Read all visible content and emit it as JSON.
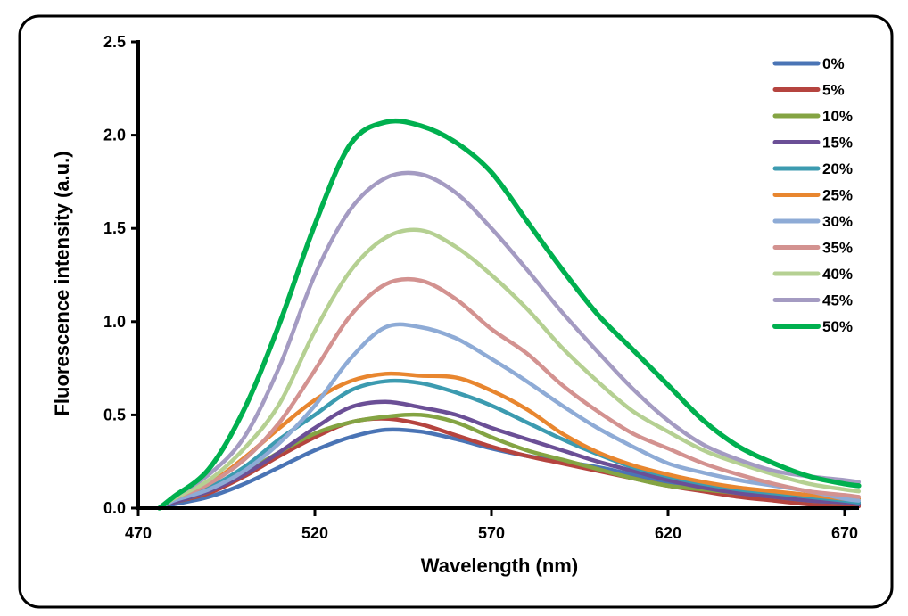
{
  "chart_data": {
    "type": "line",
    "title": "",
    "xlabel": "Wavelength (nm)",
    "ylabel": "Fluorescence intensity (a.u.)",
    "xlim": [
      470,
      675
    ],
    "ylim": [
      0,
      2.5
    ],
    "xticks": [
      "470",
      "520",
      "570",
      "620",
      "670"
    ],
    "yticks": [
      "0.0",
      "0.5",
      "1.0",
      "1.5",
      "2.0",
      "2.5"
    ],
    "grid": false,
    "legend_position": "top-right",
    "x": [
      476,
      480,
      490,
      500,
      510,
      520,
      530,
      540,
      550,
      560,
      570,
      580,
      590,
      600,
      610,
      620,
      630,
      640,
      650,
      660,
      670,
      674
    ],
    "series": [
      {
        "name": "0%",
        "color": "#4a74b5",
        "values": [
          0,
          0.02,
          0.06,
          0.13,
          0.22,
          0.31,
          0.38,
          0.42,
          0.41,
          0.37,
          0.32,
          0.28,
          0.25,
          0.22,
          0.18,
          0.14,
          0.1,
          0.07,
          0.05,
          0.02,
          0.0,
          0.01
        ]
      },
      {
        "name": "5%",
        "color": "#b5443f",
        "values": [
          0,
          0.03,
          0.08,
          0.17,
          0.28,
          0.38,
          0.46,
          0.48,
          0.45,
          0.39,
          0.33,
          0.28,
          0.24,
          0.2,
          0.16,
          0.12,
          0.09,
          0.06,
          0.04,
          0.02,
          0.01,
          0.01
        ]
      },
      {
        "name": "10%",
        "color": "#84a443",
        "values": [
          0,
          0.03,
          0.09,
          0.19,
          0.3,
          0.4,
          0.46,
          0.49,
          0.5,
          0.46,
          0.38,
          0.31,
          0.26,
          0.21,
          0.16,
          0.12,
          0.1,
          0.08,
          0.06,
          0.04,
          0.03,
          0.02
        ]
      },
      {
        "name": "15%",
        "color": "#6b4f96",
        "values": [
          0,
          0.03,
          0.09,
          0.18,
          0.3,
          0.43,
          0.54,
          0.57,
          0.54,
          0.5,
          0.43,
          0.37,
          0.31,
          0.25,
          0.2,
          0.15,
          0.11,
          0.08,
          0.06,
          0.04,
          0.03,
          0.02
        ]
      },
      {
        "name": "20%",
        "color": "#3c9bb0",
        "values": [
          0,
          0.04,
          0.11,
          0.22,
          0.37,
          0.5,
          0.63,
          0.68,
          0.67,
          0.62,
          0.55,
          0.46,
          0.37,
          0.29,
          0.22,
          0.17,
          0.13,
          0.1,
          0.08,
          0.06,
          0.04,
          0.03
        ]
      },
      {
        "name": "25%",
        "color": "#e8862f",
        "values": [
          0,
          0.05,
          0.13,
          0.27,
          0.43,
          0.58,
          0.68,
          0.72,
          0.71,
          0.7,
          0.63,
          0.53,
          0.4,
          0.3,
          0.23,
          0.18,
          0.14,
          0.11,
          0.09,
          0.07,
          0.05,
          0.05
        ]
      },
      {
        "name": "30%",
        "color": "#8eabd6",
        "values": [
          0,
          0.04,
          0.1,
          0.2,
          0.35,
          0.55,
          0.8,
          0.97,
          0.97,
          0.91,
          0.8,
          0.68,
          0.55,
          0.43,
          0.33,
          0.24,
          0.19,
          0.15,
          0.12,
          0.09,
          0.05,
          0.04
        ]
      },
      {
        "name": "35%",
        "color": "#d39290",
        "values": [
          0,
          0.05,
          0.13,
          0.26,
          0.46,
          0.74,
          1.03,
          1.2,
          1.22,
          1.12,
          0.96,
          0.83,
          0.66,
          0.52,
          0.4,
          0.32,
          0.24,
          0.18,
          0.13,
          0.09,
          0.07,
          0.06
        ]
      },
      {
        "name": "40%",
        "color": "#b5d092",
        "values": [
          0,
          0.05,
          0.15,
          0.32,
          0.56,
          0.95,
          1.27,
          1.45,
          1.49,
          1.4,
          1.25,
          1.07,
          0.86,
          0.68,
          0.52,
          0.41,
          0.31,
          0.24,
          0.18,
          0.13,
          0.1,
          0.09
        ]
      },
      {
        "name": "45%",
        "color": "#a49bc2",
        "values": [
          0,
          0.06,
          0.18,
          0.38,
          0.76,
          1.25,
          1.6,
          1.77,
          1.79,
          1.69,
          1.5,
          1.28,
          1.05,
          0.84,
          0.64,
          0.47,
          0.34,
          0.26,
          0.2,
          0.17,
          0.15,
          0.14
        ]
      },
      {
        "name": "50%",
        "color": "#00b04f",
        "values": [
          0,
          0.06,
          0.21,
          0.53,
          0.99,
          1.52,
          1.95,
          2.07,
          2.05,
          1.96,
          1.8,
          1.54,
          1.28,
          1.04,
          0.85,
          0.66,
          0.47,
          0.33,
          0.24,
          0.17,
          0.13,
          0.12
        ]
      }
    ]
  }
}
